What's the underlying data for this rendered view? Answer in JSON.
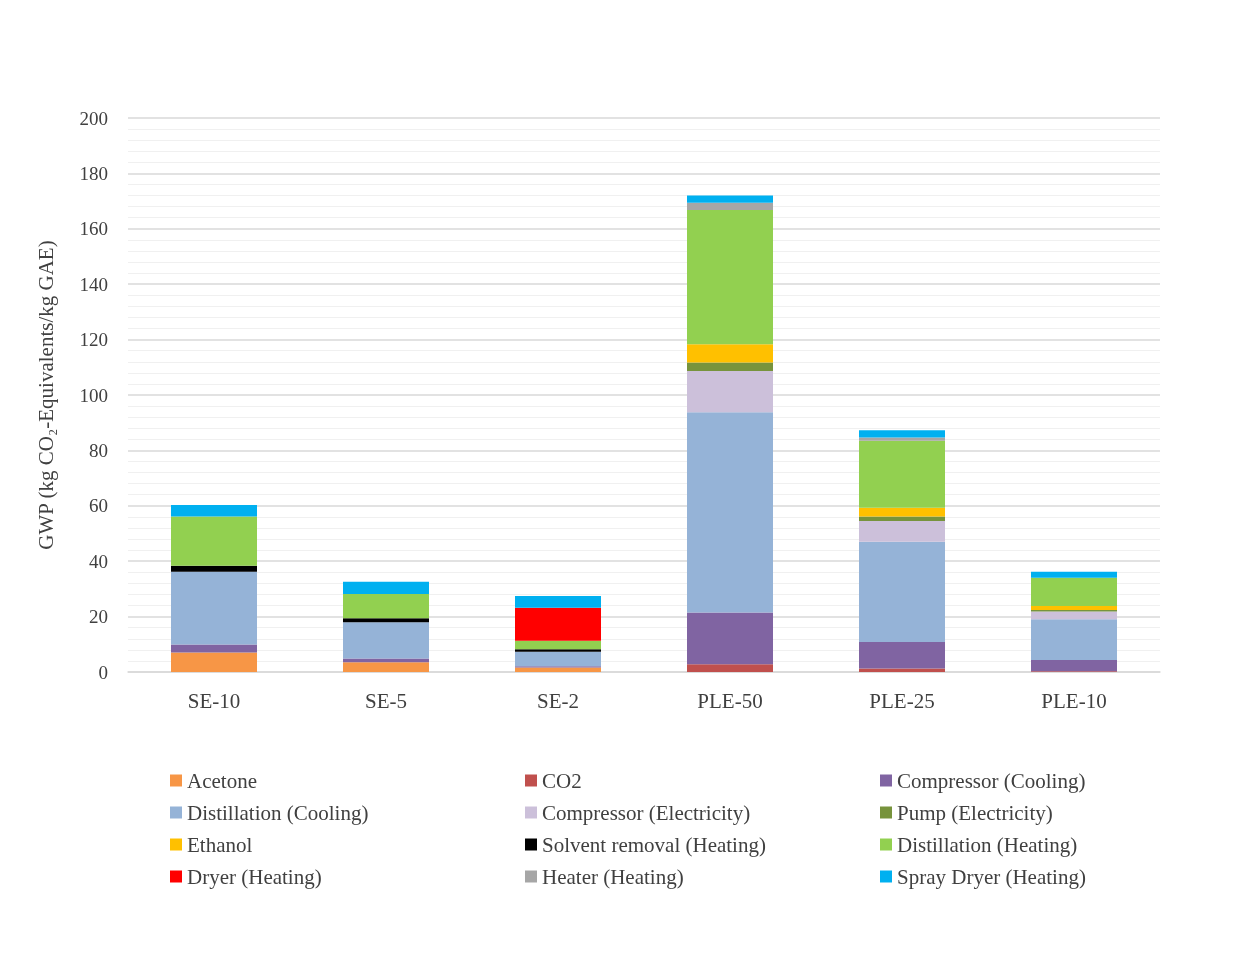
{
  "chart_data": {
    "type": "bar",
    "stacked": true,
    "ylabel": "GWP (kg CO₂-Equivalents/kg GAE)",
    "categories": [
      "SE-10",
      "SE-5",
      "SE-2",
      "PLE-50",
      "PLE-25",
      "PLE-10"
    ],
    "ylim": [
      0,
      200
    ],
    "yticks": [
      0,
      20,
      40,
      60,
      80,
      100,
      120,
      140,
      160,
      180,
      200
    ],
    "grid": "y",
    "legend": "bottom",
    "series": [
      {
        "name": "Acetone",
        "color": "#f79646",
        "values": [
          7,
          3.5,
          1.6,
          0,
          0,
          0
        ]
      },
      {
        "name": "CO2",
        "color": "#c0504d",
        "values": [
          0,
          0,
          0,
          2.8,
          1.3,
          0.3
        ]
      },
      {
        "name": "Compressor (Cooling)",
        "color": "#8064a2",
        "values": [
          2.9,
          1.4,
          0.5,
          18.7,
          9.5,
          4.0
        ]
      },
      {
        "name": "Distillation (Cooling)",
        "color": "#95b3d7",
        "values": [
          26.3,
          13.1,
          5.2,
          72.3,
          36.2,
          14.7
        ]
      },
      {
        "name": "Compressor (Electricity)",
        "color": "#ccc0da",
        "values": [
          0,
          0,
          0,
          14.9,
          7.5,
          2.8
        ]
      },
      {
        "name": "Pump (Electricity)",
        "color": "#77933c",
        "values": [
          0,
          0,
          0,
          3.0,
          1.6,
          0.6
        ]
      },
      {
        "name": "Ethanol",
        "color": "#ffc000",
        "values": [
          0,
          0,
          0,
          6.6,
          3.2,
          1.4
        ]
      },
      {
        "name": "Solvent removal (Heating)",
        "color": "#000000",
        "values": [
          2.2,
          1.4,
          0.9,
          0,
          0,
          0
        ]
      },
      {
        "name": "Distillation (Heating)",
        "color": "#92d050",
        "values": [
          17.7,
          8.8,
          3.1,
          48.5,
          24.2,
          10.2
        ]
      },
      {
        "name": "Dryer (Heating)",
        "color": "#ff0000",
        "values": [
          0,
          0,
          11.9,
          0,
          0,
          0
        ]
      },
      {
        "name": "Heater (Heating)",
        "color": "#a6a6a6",
        "values": [
          0,
          0,
          0,
          2.6,
          1.2,
          null
        ]
      },
      {
        "name": "Spray Dryer (Heating)",
        "color": "#00b0f0",
        "values": [
          4.2,
          4.4,
          4.2,
          2.6,
          2.6,
          2.2
        ]
      }
    ]
  }
}
